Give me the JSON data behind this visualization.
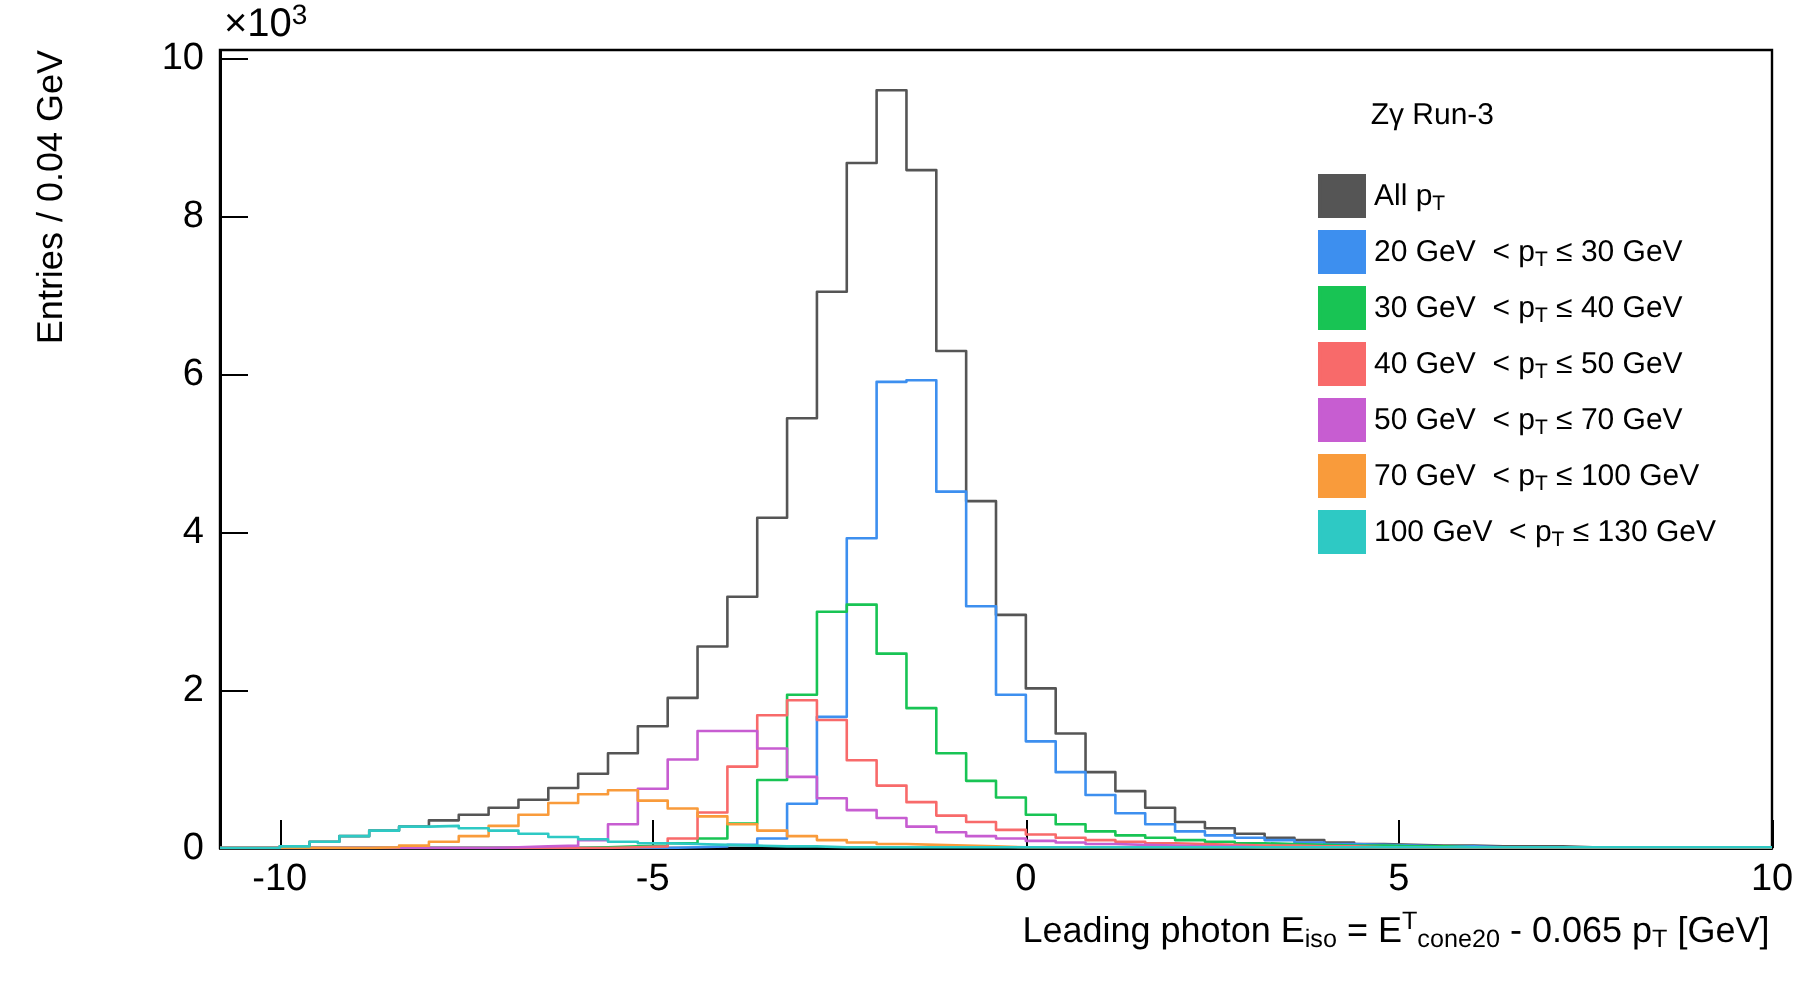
{
  "chart_data": {
    "type": "histogram",
    "xlabel": "Leading photon E$_{iso}$ = E$^{T}$$_{cone20}$ - 0.065 p$_{T}$ [GeV]",
    "ylabel": "Entries / 0.04 GeV",
    "legend_title": "Zγ Run-3",
    "annotations": [
      "×10$^{3}$"
    ],
    "bins": [
      -10.8,
      -10.4,
      -10,
      -9.6,
      -9.2,
      -8.8,
      -8.4,
      -8,
      -7.6,
      -7.2,
      -6.8,
      -6.4,
      -6,
      -5.6,
      -5.2,
      -4.8,
      -4.4,
      -4,
      -3.6,
      -3.2,
      -2.8,
      -2.4,
      -2,
      -1.6,
      -1.2,
      -0.8,
      -0.4,
      0,
      0.4,
      0.8,
      1.2,
      1.6,
      2,
      2.4,
      2.8,
      3.2,
      3.6,
      4,
      4.4,
      4.8,
      5.2,
      5.6,
      6,
      6.4,
      6.8,
      7.2,
      7.6,
      8,
      8.4,
      8.8,
      9.2,
      9.6,
      10
    ],
    "series": [
      {
        "name": "All p$_{T}$",
        "color": "#555555",
        "values": [
          0,
          0,
          0.02,
          0.08,
          0.15,
          0.22,
          0.27,
          0.35,
          0.42,
          0.51,
          0.61,
          0.76,
          0.94,
          1.2,
          1.54,
          1.9,
          2.55,
          3.18,
          4.18,
          5.44,
          7.04,
          8.67,
          9.59,
          8.58,
          6.29,
          4.39,
          2.95,
          2.02,
          1.45,
          0.96,
          0.72,
          0.51,
          0.33,
          0.25,
          0.18,
          0.13,
          0.1,
          0.07,
          0.05,
          0.04,
          0.03,
          0.03,
          0.02,
          0.02,
          0.02,
          0.01,
          0.01,
          0.01,
          0.01,
          0.01,
          0.01,
          0.01
        ]
      },
      {
        "name": "20 GeV  < p$_{T}$ ≤ 30 GeV",
        "color": "#3d8fef",
        "values": [
          0,
          0,
          0,
          0,
          0,
          0,
          0,
          0,
          0,
          0,
          0,
          0,
          0,
          0,
          0,
          0.01,
          0.02,
          0.04,
          0.12,
          0.56,
          1.66,
          3.92,
          5.9,
          5.92,
          4.51,
          3.06,
          1.94,
          1.35,
          0.96,
          0.67,
          0.44,
          0.3,
          0.21,
          0.16,
          0.13,
          0.1,
          0.07,
          0.05,
          0.04,
          0.03,
          0.02,
          0.02,
          0.01,
          0.01,
          0.01,
          0.01,
          0.01,
          0.01,
          0.01,
          0.01,
          0.01,
          0.01
        ]
      },
      {
        "name": "30 GeV  < p$_{T}$ ≤ 40 GeV",
        "color": "#18c454",
        "values": [
          0,
          0,
          0,
          0,
          0,
          0,
          0,
          0,
          0,
          0,
          0,
          0,
          0.01,
          0.02,
          0.03,
          0.06,
          0.12,
          0.31,
          0.86,
          1.94,
          2.99,
          3.08,
          2.46,
          1.77,
          1.2,
          0.85,
          0.64,
          0.42,
          0.3,
          0.21,
          0.16,
          0.13,
          0.1,
          0.08,
          0.06,
          0.05,
          0.04,
          0.03,
          0.03,
          0.02,
          0.02,
          0.01,
          0.01,
          0.01,
          0.01,
          0.01,
          0.01,
          0.01,
          0.01,
          0.01,
          0.01,
          0.01
        ]
      },
      {
        "name": "40 GeV  < p$_{T}$ ≤ 50 GeV",
        "color": "#f86a6a",
        "values": [
          0,
          0,
          0,
          0,
          0,
          0,
          0,
          0,
          0,
          0,
          0,
          0,
          0,
          0.01,
          0.02,
          0.12,
          0.45,
          1.03,
          1.68,
          1.87,
          1.62,
          1.11,
          0.79,
          0.58,
          0.41,
          0.33,
          0.23,
          0.17,
          0.13,
          0.1,
          0.08,
          0.06,
          0.05,
          0.04,
          0.03,
          0.03,
          0.02,
          0.02,
          0.01,
          0.01,
          0.01,
          0.01,
          0.01,
          0.01,
          0.01,
          0.01,
          0.01,
          0.01,
          0.01,
          0.01,
          0.01,
          0.01
        ]
      },
      {
        "name": "50 GeV  < p$_{T}$ ≤ 70 GeV",
        "color": "#c75dd1",
        "values": [
          0,
          0,
          0,
          0,
          0,
          0,
          0,
          0,
          0,
          0.01,
          0.02,
          0.03,
          0.1,
          0.3,
          0.75,
          1.12,
          1.48,
          1.48,
          1.26,
          0.9,
          0.63,
          0.48,
          0.38,
          0.27,
          0.2,
          0.15,
          0.12,
          0.09,
          0.07,
          0.05,
          0.04,
          0.03,
          0.02,
          0.02,
          0.01,
          0.01,
          0.01,
          0.01,
          0.01,
          0.01,
          0.01,
          0.01,
          0.01,
          0.01,
          0.01,
          0.01,
          0.01,
          0.01,
          0.01,
          0.01,
          0.01,
          0.01
        ]
      },
      {
        "name": "70 GeV  < p$_{T}$ ≤ 100 GeV",
        "color": "#f99b3b",
        "values": [
          0,
          0,
          0,
          0,
          0,
          0.01,
          0.03,
          0.08,
          0.15,
          0.28,
          0.42,
          0.57,
          0.68,
          0.73,
          0.6,
          0.5,
          0.4,
          0.3,
          0.22,
          0.15,
          0.1,
          0.07,
          0.05,
          0.04,
          0.03,
          0.02,
          0.01,
          0.01,
          0.01,
          0.01,
          0.01,
          0.01,
          0.01,
          0.01,
          0.01,
          0.01,
          0.01,
          0.01,
          0.01,
          0.01,
          0.01,
          0.01,
          0.01,
          0.01,
          0.01,
          0.01,
          0.01,
          0.01,
          0.01,
          0.01,
          0.01,
          0.01
        ]
      },
      {
        "name": "100 GeV  < p$_{T}$ ≤ 130 GeV",
        "color": "#2ec9c4",
        "values": [
          0,
          0,
          0.02,
          0.08,
          0.15,
          0.22,
          0.27,
          0.28,
          0.25,
          0.22,
          0.18,
          0.14,
          0.11,
          0.08,
          0.06,
          0.05,
          0.04,
          0.03,
          0.02,
          0.02,
          0.01,
          0.01,
          0.01,
          0.01,
          0.01,
          0.01,
          0.01,
          0.01,
          0.01,
          0.01,
          0.01,
          0.01,
          0.01,
          0.01,
          0.01,
          0.01,
          0.01,
          0.01,
          0.01,
          0.01,
          0.01,
          0.01,
          0.01,
          0.01,
          0.01,
          0.01,
          0.01,
          0.01,
          0.01,
          0.01,
          0.01,
          0.01
        ]
      }
    ],
    "xlim": [
      -10.8,
      10
    ],
    "xticks": [
      -10,
      -5,
      0,
      5,
      10
    ],
    "ylim": [
      0,
      10.1
    ],
    "yticks": [
      0,
      2,
      4,
      6,
      8,
      10
    ],
    "legend": "top right"
  }
}
